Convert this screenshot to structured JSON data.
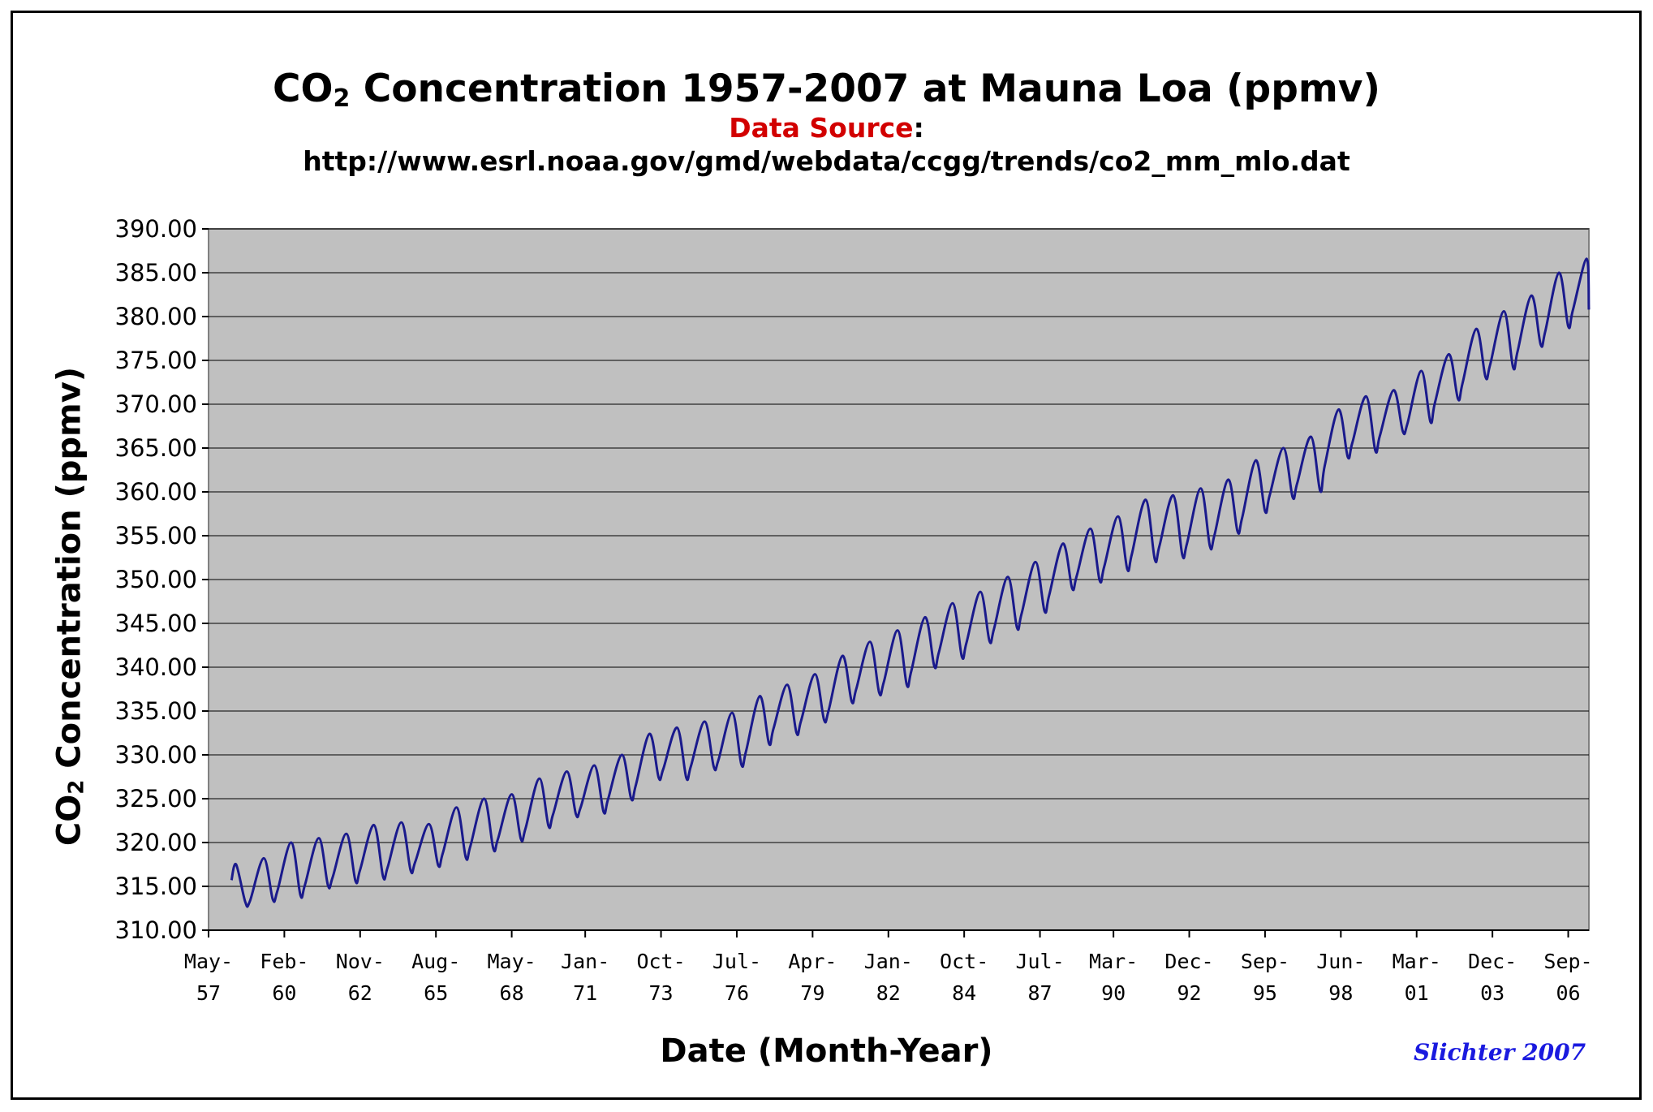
{
  "chart_data": {
    "type": "line",
    "title_main": "CO",
    "title_sub": "2",
    "title_rest": " Concentration 1957-2007 at Mauna Loa (ppmv)",
    "source_label": "Data Source",
    "source_colon": ":",
    "source_url": "http://www.esrl.noaa.gov/gmd/webdata/ccgg/trends/co2_mm_mlo.dat",
    "xlabel": "Date (Month-Year)",
    "ylabel_main": "CO",
    "ylabel_sub": "2",
    "ylabel_rest": " Concentration (ppmv)",
    "signature": "Slichter 2007",
    "ylim": [
      310,
      390
    ],
    "yticks": [
      "310.00",
      "315.00",
      "320.00",
      "325.00",
      "330.00",
      "335.00",
      "340.00",
      "345.00",
      "350.00",
      "355.00",
      "360.00",
      "365.00",
      "370.00",
      "375.00",
      "380.00",
      "385.00",
      "390.00"
    ],
    "xticks": [
      {
        "month": "May-",
        "year": "57",
        "date": "1957-05"
      },
      {
        "month": "Feb-",
        "year": "60",
        "date": "1960-02"
      },
      {
        "month": "Nov-",
        "year": "62",
        "date": "1962-11"
      },
      {
        "month": "Aug-",
        "year": "65",
        "date": "1965-08"
      },
      {
        "month": "May-",
        "year": "68",
        "date": "1968-05"
      },
      {
        "month": "Jan-",
        "year": "71",
        "date": "1971-01"
      },
      {
        "month": "Oct-",
        "year": "73",
        "date": "1973-10"
      },
      {
        "month": "Jul-",
        "year": "76",
        "date": "1976-07"
      },
      {
        "month": "Apr-",
        "year": "79",
        "date": "1979-04"
      },
      {
        "month": "Jan-",
        "year": "82",
        "date": "1982-01"
      },
      {
        "month": "Oct-",
        "year": "84",
        "date": "1984-10"
      },
      {
        "month": "Jul-",
        "year": "87",
        "date": "1987-07"
      },
      {
        "month": "Mar-",
        "year": "90",
        "date": "1990-03"
      },
      {
        "month": "Dec-",
        "year": "92",
        "date": "1992-12"
      },
      {
        "month": "Sep-",
        "year": "95",
        "date": "1995-09"
      },
      {
        "month": "Jun-",
        "year": "98",
        "date": "1998-06"
      },
      {
        "month": "Mar-",
        "year": "01",
        "date": "2001-03"
      },
      {
        "month": "Dec-",
        "year": "03",
        "date": "2003-12"
      },
      {
        "month": "Sep-",
        "year": "06",
        "date": "2006-09"
      }
    ],
    "x_range": [
      "1957-05",
      "2007-06"
    ],
    "grid": true,
    "legend": "none",
    "series": [
      {
        "color": "#1a1a8c",
        "x": [
          "1958-03",
          "1958-05",
          "1958-09",
          "1958-11",
          "1959-05",
          "1959-09",
          "1959-11",
          "1960-05",
          "1960-09",
          "1960-11",
          "1961-05",
          "1961-09",
          "1961-11",
          "1962-05",
          "1962-09",
          "1962-11",
          "1963-05",
          "1963-09",
          "1963-11",
          "1964-05",
          "1964-09",
          "1964-11",
          "1965-05",
          "1965-09",
          "1965-11",
          "1966-05",
          "1966-09",
          "1966-11",
          "1967-05",
          "1967-09",
          "1967-11",
          "1968-05",
          "1968-09",
          "1968-11",
          "1969-05",
          "1969-09",
          "1969-11",
          "1970-05",
          "1970-09",
          "1970-11",
          "1971-05",
          "1971-09",
          "1971-11",
          "1972-05",
          "1972-09",
          "1972-11",
          "1973-05",
          "1973-09",
          "1973-11",
          "1974-05",
          "1974-09",
          "1974-11",
          "1975-05",
          "1975-09",
          "1975-11",
          "1976-05",
          "1976-09",
          "1976-11",
          "1977-05",
          "1977-09",
          "1977-11",
          "1978-05",
          "1978-09",
          "1978-11",
          "1979-05",
          "1979-09",
          "1979-11",
          "1980-05",
          "1980-09",
          "1980-11",
          "1981-05",
          "1981-09",
          "1981-11",
          "1982-05",
          "1982-09",
          "1982-11",
          "1983-05",
          "1983-09",
          "1983-11",
          "1984-05",
          "1984-09",
          "1984-11",
          "1985-05",
          "1985-09",
          "1985-11",
          "1986-05",
          "1986-09",
          "1986-11",
          "1987-05",
          "1987-09",
          "1987-11",
          "1988-05",
          "1988-09",
          "1988-11",
          "1989-05",
          "1989-09",
          "1989-11",
          "1990-05",
          "1990-09",
          "1990-11",
          "1991-05",
          "1991-09",
          "1991-11",
          "1992-05",
          "1992-09",
          "1992-11",
          "1993-05",
          "1993-09",
          "1993-11",
          "1994-05",
          "1994-09",
          "1994-11",
          "1995-05",
          "1995-09",
          "1995-11",
          "1996-05",
          "1996-09",
          "1996-11",
          "1997-05",
          "1997-09",
          "1997-11",
          "1998-05",
          "1998-09",
          "1998-11",
          "1999-05",
          "1999-09",
          "1999-11",
          "2000-05",
          "2000-09",
          "2000-11",
          "2001-05",
          "2001-09",
          "2001-11",
          "2002-05",
          "2002-09",
          "2002-11",
          "2003-05",
          "2003-09",
          "2003-11",
          "2004-05",
          "2004-09",
          "2004-11",
          "2005-05",
          "2005-09",
          "2005-11",
          "2006-05",
          "2006-09",
          "2006-11",
          "2007-05",
          "2007-06"
        ],
        "values": [
          315.7,
          317.5,
          313.2,
          313.3,
          318.2,
          313.5,
          314.5,
          320.0,
          314.0,
          315.2,
          320.5,
          315.1,
          316.0,
          321.0,
          315.6,
          316.9,
          322.0,
          316.1,
          317.2,
          322.3,
          316.8,
          317.8,
          322.1,
          317.4,
          318.8,
          324.0,
          318.3,
          319.6,
          325.0,
          319.3,
          320.4,
          325.5,
          320.4,
          321.6,
          327.3,
          321.9,
          323.2,
          328.1,
          323.2,
          324.0,
          328.8,
          323.5,
          325.0,
          330.0,
          325.0,
          326.5,
          332.4,
          327.4,
          328.4,
          333.1,
          327.4,
          328.7,
          333.8,
          328.6,
          329.4,
          334.8,
          328.9,
          330.4,
          336.7,
          331.3,
          333.0,
          338.0,
          332.5,
          333.9,
          339.2,
          334.0,
          335.1,
          341.3,
          336.1,
          337.5,
          342.9,
          337.1,
          338.3,
          344.2,
          338.0,
          339.6,
          345.7,
          340.1,
          341.7,
          347.3,
          341.2,
          342.8,
          348.6,
          343.0,
          344.4,
          350.3,
          344.5,
          346.1,
          352.0,
          346.4,
          348.2,
          354.1,
          349.0,
          350.4,
          355.8,
          349.9,
          351.5,
          357.2,
          351.2,
          352.9,
          359.1,
          352.3,
          353.8,
          359.6,
          352.8,
          354.1,
          360.4,
          353.8,
          355.1,
          361.4,
          355.5,
          357.0,
          363.6,
          357.8,
          359.6,
          365.0,
          359.4,
          361.0,
          366.3,
          360.1,
          363.0,
          369.4,
          364.0,
          365.6,
          370.9,
          364.7,
          366.4,
          371.6,
          366.9,
          367.8,
          373.8,
          368.0,
          370.2,
          375.7,
          370.6,
          372.4,
          378.6,
          373.1,
          374.5,
          380.6,
          374.2,
          376.1,
          382.4,
          376.8,
          378.3,
          385.0,
          378.9,
          380.7,
          386.6,
          380.8
        ]
      }
    ]
  }
}
